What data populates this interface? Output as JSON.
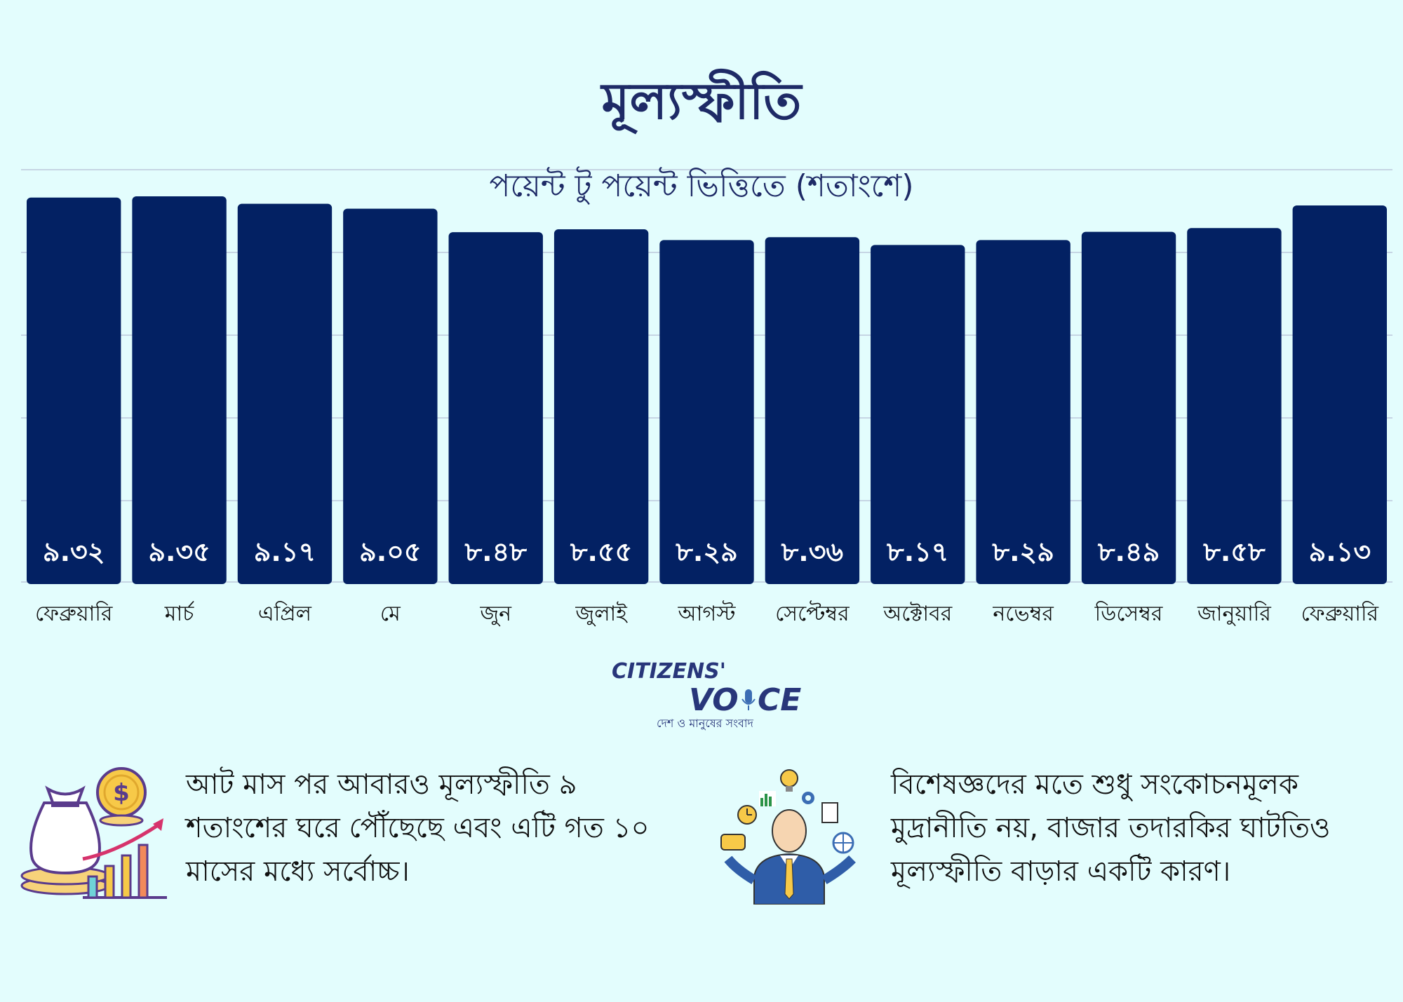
{
  "colors": {
    "background": "#e3fdfd",
    "bar": "#032163",
    "title": "#1e2a66",
    "grid": "#c6d5e4"
  },
  "chart_data": {
    "type": "bar",
    "title": "মূল্যস্ফীতি",
    "subtitle": "পয়েন্ট টু পয়েন্ট ভিত্তিতে (শতাংশে)",
    "categories": [
      "ফেব্রুয়ারি",
      "মার্চ",
      "এপ্রিল",
      "মে",
      "জুন",
      "জুলাই",
      "আগস্ট",
      "সেপ্টেম্বর",
      "অক্টোবর",
      "নভেম্বর",
      "ডিসেম্বর",
      "জানুয়ারি",
      "ফেব্রুয়ারি"
    ],
    "values": [
      9.32,
      9.35,
      9.17,
      9.05,
      8.48,
      8.55,
      8.29,
      8.36,
      8.17,
      8.29,
      8.49,
      8.58,
      9.13
    ],
    "value_labels": [
      "৯.৩২",
      "৯.৩৫",
      "৯.১৭",
      "৯.০৫",
      "৮.৪৮",
      "৮.৫৫",
      "৮.২৯",
      "৮.৩৬",
      "৮.১৭",
      "৮.২৯",
      "৮.৪৯",
      "৮.৫৮",
      "৯.১৩"
    ],
    "grid": true,
    "legend": "none"
  },
  "logo": {
    "line1": "CITIZENS'",
    "line2_a": "VO",
    "line2_b": "CE",
    "tagline": "দেশ ও মানুষের সংবাদ"
  },
  "notes": {
    "left": "আট মাস পর আবারও মূল্যস্ফীতি ৯ শতাংশের ঘরে পৌঁছেছে এবং এটি গত ১০ মাসের মধ্যে সর্বোচ্চ।",
    "right": "বিশেষজ্ঞদের মতে শুধু সংকোচনমূলক মুদ্রানীতি নয়, বাজার তদারকির ঘাটতিও মূল্যস্ফীতি বাড়ার একটি কারণ।"
  },
  "icons": {
    "left": "money-bag-growth-icon",
    "right": "businessman-ideas-icon",
    "dollar": "dollar-coin-icon",
    "mic": "microphone-icon"
  }
}
